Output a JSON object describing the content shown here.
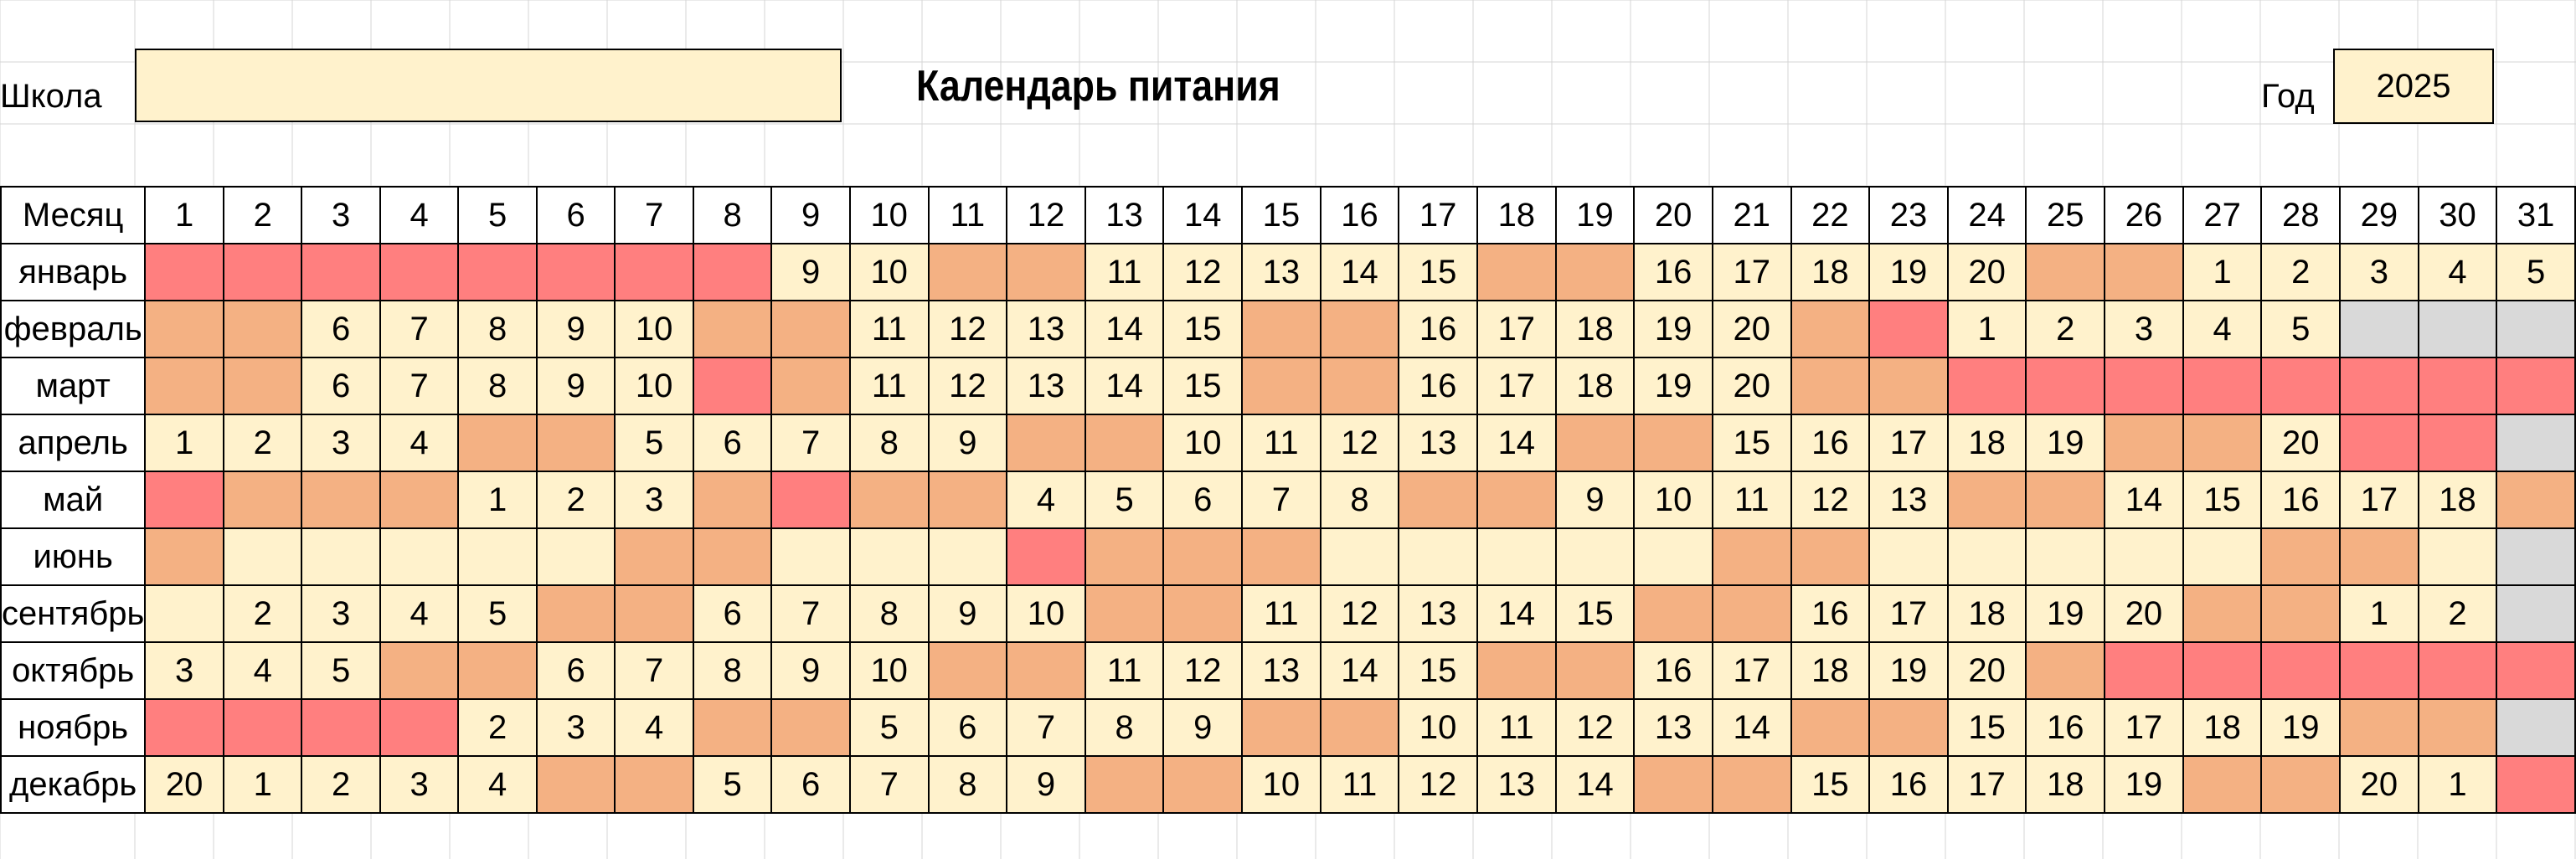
{
  "header": {
    "school_label": "Школа",
    "school_value": "",
    "title": "Календарь питания",
    "year_label": "Год",
    "year_value": "2025"
  },
  "legend_colors": {
    "study": "#FFF2CC",
    "weekend": "#F4B183",
    "holiday": "#FF7F7F",
    "no_day": "#D9D9D9"
  },
  "table": {
    "month_header": "Месяц",
    "days": [
      "1",
      "2",
      "3",
      "4",
      "5",
      "6",
      "7",
      "8",
      "9",
      "10",
      "11",
      "12",
      "13",
      "14",
      "15",
      "16",
      "17",
      "18",
      "19",
      "20",
      "21",
      "22",
      "23",
      "24",
      "25",
      "26",
      "27",
      "28",
      "29",
      "30",
      "31"
    ],
    "months": [
      {
        "name": "январь",
        "cells": [
          {
            "t": "h"
          },
          {
            "t": "h"
          },
          {
            "t": "h"
          },
          {
            "t": "h"
          },
          {
            "t": "h"
          },
          {
            "t": "h"
          },
          {
            "t": "h"
          },
          {
            "t": "h"
          },
          {
            "v": "9"
          },
          {
            "v": "10"
          },
          {
            "t": "w"
          },
          {
            "t": "w"
          },
          {
            "v": "11"
          },
          {
            "v": "12"
          },
          {
            "v": "13"
          },
          {
            "v": "14"
          },
          {
            "v": "15"
          },
          {
            "t": "w"
          },
          {
            "t": "w"
          },
          {
            "v": "16"
          },
          {
            "v": "17"
          },
          {
            "v": "18"
          },
          {
            "v": "19"
          },
          {
            "v": "20"
          },
          {
            "t": "w"
          },
          {
            "t": "w"
          },
          {
            "v": "1"
          },
          {
            "v": "2"
          },
          {
            "v": "3"
          },
          {
            "v": "4"
          },
          {
            "v": "5"
          }
        ]
      },
      {
        "name": "февраль",
        "cells": [
          {
            "t": "w"
          },
          {
            "t": "w"
          },
          {
            "v": "6"
          },
          {
            "v": "7"
          },
          {
            "v": "8"
          },
          {
            "v": "9"
          },
          {
            "v": "10"
          },
          {
            "t": "w"
          },
          {
            "t": "w"
          },
          {
            "v": "11"
          },
          {
            "v": "12"
          },
          {
            "v": "13"
          },
          {
            "v": "14"
          },
          {
            "v": "15"
          },
          {
            "t": "w"
          },
          {
            "t": "w"
          },
          {
            "v": "16"
          },
          {
            "v": "17"
          },
          {
            "v": "18"
          },
          {
            "v": "19"
          },
          {
            "v": "20"
          },
          {
            "t": "w"
          },
          {
            "t": "h"
          },
          {
            "v": "1"
          },
          {
            "v": "2"
          },
          {
            "v": "3"
          },
          {
            "v": "4"
          },
          {
            "v": "5"
          },
          {
            "t": "n"
          },
          {
            "t": "n"
          },
          {
            "t": "n"
          }
        ]
      },
      {
        "name": "март",
        "cells": [
          {
            "t": "w"
          },
          {
            "t": "w"
          },
          {
            "v": "6"
          },
          {
            "v": "7"
          },
          {
            "v": "8"
          },
          {
            "v": "9"
          },
          {
            "v": "10"
          },
          {
            "t": "h"
          },
          {
            "t": "w"
          },
          {
            "v": "11"
          },
          {
            "v": "12"
          },
          {
            "v": "13"
          },
          {
            "v": "14"
          },
          {
            "v": "15"
          },
          {
            "t": "w"
          },
          {
            "t": "w"
          },
          {
            "v": "16"
          },
          {
            "v": "17"
          },
          {
            "v": "18"
          },
          {
            "v": "19"
          },
          {
            "v": "20"
          },
          {
            "t": "w"
          },
          {
            "t": "w"
          },
          {
            "t": "h"
          },
          {
            "t": "h"
          },
          {
            "t": "h"
          },
          {
            "t": "h"
          },
          {
            "t": "h"
          },
          {
            "t": "h"
          },
          {
            "t": "h"
          },
          {
            "t": "h"
          }
        ]
      },
      {
        "name": "апрель",
        "cells": [
          {
            "v": "1"
          },
          {
            "v": "2"
          },
          {
            "v": "3"
          },
          {
            "v": "4"
          },
          {
            "t": "w"
          },
          {
            "t": "w"
          },
          {
            "v": "5"
          },
          {
            "v": "6"
          },
          {
            "v": "7"
          },
          {
            "v": "8"
          },
          {
            "v": "9"
          },
          {
            "t": "w"
          },
          {
            "t": "w"
          },
          {
            "v": "10"
          },
          {
            "v": "11"
          },
          {
            "v": "12"
          },
          {
            "v": "13"
          },
          {
            "v": "14"
          },
          {
            "t": "w"
          },
          {
            "t": "w"
          },
          {
            "v": "15"
          },
          {
            "v": "16"
          },
          {
            "v": "17"
          },
          {
            "v": "18"
          },
          {
            "v": "19"
          },
          {
            "t": "w"
          },
          {
            "t": "w"
          },
          {
            "v": "20"
          },
          {
            "t": "h"
          },
          {
            "t": "h"
          },
          {
            "t": "n"
          }
        ]
      },
      {
        "name": "май",
        "cells": [
          {
            "t": "h"
          },
          {
            "t": "w"
          },
          {
            "t": "w"
          },
          {
            "t": "w"
          },
          {
            "v": "1"
          },
          {
            "v": "2"
          },
          {
            "v": "3"
          },
          {
            "t": "w"
          },
          {
            "t": "h"
          },
          {
            "t": "w"
          },
          {
            "t": "w"
          },
          {
            "v": "4"
          },
          {
            "v": "5"
          },
          {
            "v": "6"
          },
          {
            "v": "7"
          },
          {
            "v": "8"
          },
          {
            "t": "w"
          },
          {
            "t": "w"
          },
          {
            "v": "9"
          },
          {
            "v": "10"
          },
          {
            "v": "11"
          },
          {
            "v": "12"
          },
          {
            "v": "13"
          },
          {
            "t": "w"
          },
          {
            "t": "w"
          },
          {
            "v": "14"
          },
          {
            "v": "15"
          },
          {
            "v": "16"
          },
          {
            "v": "17"
          },
          {
            "v": "18"
          },
          {
            "t": "w"
          }
        ]
      },
      {
        "name": "июнь",
        "cells": [
          {
            "t": "w"
          },
          {
            "t": "b"
          },
          {
            "t": "b"
          },
          {
            "t": "b"
          },
          {
            "t": "b"
          },
          {
            "t": "b"
          },
          {
            "t": "w"
          },
          {
            "t": "w"
          },
          {
            "t": "b"
          },
          {
            "t": "b"
          },
          {
            "t": "b"
          },
          {
            "t": "h"
          },
          {
            "t": "w"
          },
          {
            "t": "w"
          },
          {
            "t": "w"
          },
          {
            "t": "b"
          },
          {
            "t": "b"
          },
          {
            "t": "b"
          },
          {
            "t": "b"
          },
          {
            "t": "b"
          },
          {
            "t": "w"
          },
          {
            "t": "w"
          },
          {
            "t": "b"
          },
          {
            "t": "b"
          },
          {
            "t": "b"
          },
          {
            "t": "b"
          },
          {
            "t": "b"
          },
          {
            "t": "w"
          },
          {
            "t": "w"
          },
          {
            "t": "b"
          },
          {
            "t": "n"
          }
        ]
      },
      {
        "name": "сентябрь",
        "cells": [
          {
            "t": "b"
          },
          {
            "v": "2"
          },
          {
            "v": "3"
          },
          {
            "v": "4"
          },
          {
            "v": "5"
          },
          {
            "t": "w"
          },
          {
            "t": "w"
          },
          {
            "v": "6"
          },
          {
            "v": "7"
          },
          {
            "v": "8"
          },
          {
            "v": "9"
          },
          {
            "v": "10"
          },
          {
            "t": "w"
          },
          {
            "t": "w"
          },
          {
            "v": "11"
          },
          {
            "v": "12"
          },
          {
            "v": "13"
          },
          {
            "v": "14"
          },
          {
            "v": "15"
          },
          {
            "t": "w"
          },
          {
            "t": "w"
          },
          {
            "v": "16"
          },
          {
            "v": "17"
          },
          {
            "v": "18"
          },
          {
            "v": "19"
          },
          {
            "v": "20"
          },
          {
            "t": "w"
          },
          {
            "t": "w"
          },
          {
            "v": "1"
          },
          {
            "v": "2"
          },
          {
            "t": "n"
          }
        ]
      },
      {
        "name": "октябрь",
        "cells": [
          {
            "v": "3"
          },
          {
            "v": "4"
          },
          {
            "v": "5"
          },
          {
            "t": "w"
          },
          {
            "t": "w"
          },
          {
            "v": "6"
          },
          {
            "v": "7"
          },
          {
            "v": "8"
          },
          {
            "v": "9"
          },
          {
            "v": "10"
          },
          {
            "t": "w"
          },
          {
            "t": "w"
          },
          {
            "v": "11"
          },
          {
            "v": "12"
          },
          {
            "v": "13"
          },
          {
            "v": "14"
          },
          {
            "v": "15"
          },
          {
            "t": "w"
          },
          {
            "t": "w"
          },
          {
            "v": "16"
          },
          {
            "v": "17"
          },
          {
            "v": "18"
          },
          {
            "v": "19"
          },
          {
            "v": "20"
          },
          {
            "t": "w"
          },
          {
            "t": "h"
          },
          {
            "t": "h"
          },
          {
            "t": "h"
          },
          {
            "t": "h"
          },
          {
            "t": "h"
          },
          {
            "t": "h"
          }
        ]
      },
      {
        "name": "ноябрь",
        "cells": [
          {
            "t": "h"
          },
          {
            "t": "h"
          },
          {
            "t": "h"
          },
          {
            "t": "h"
          },
          {
            "v": "2"
          },
          {
            "v": "3"
          },
          {
            "v": "4"
          },
          {
            "t": "w"
          },
          {
            "t": "w"
          },
          {
            "v": "5"
          },
          {
            "v": "6"
          },
          {
            "v": "7"
          },
          {
            "v": "8"
          },
          {
            "v": "9"
          },
          {
            "t": "w"
          },
          {
            "t": "w"
          },
          {
            "v": "10"
          },
          {
            "v": "11"
          },
          {
            "v": "12"
          },
          {
            "v": "13"
          },
          {
            "v": "14"
          },
          {
            "t": "w"
          },
          {
            "t": "w"
          },
          {
            "v": "15"
          },
          {
            "v": "16"
          },
          {
            "v": "17"
          },
          {
            "v": "18"
          },
          {
            "v": "19"
          },
          {
            "t": "w"
          },
          {
            "t": "w"
          },
          {
            "t": "n"
          }
        ]
      },
      {
        "name": "декабрь",
        "cells": [
          {
            "v": "20"
          },
          {
            "v": "1"
          },
          {
            "v": "2"
          },
          {
            "v": "3"
          },
          {
            "v": "4"
          },
          {
            "t": "w"
          },
          {
            "t": "w"
          },
          {
            "v": "5"
          },
          {
            "v": "6"
          },
          {
            "v": "7"
          },
          {
            "v": "8"
          },
          {
            "v": "9"
          },
          {
            "t": "w"
          },
          {
            "t": "w"
          },
          {
            "v": "10"
          },
          {
            "v": "11"
          },
          {
            "v": "12"
          },
          {
            "v": "13"
          },
          {
            "v": "14"
          },
          {
            "t": "w"
          },
          {
            "t": "w"
          },
          {
            "v": "15"
          },
          {
            "v": "16"
          },
          {
            "v": "17"
          },
          {
            "v": "18"
          },
          {
            "v": "19"
          },
          {
            "t": "w"
          },
          {
            "t": "w"
          },
          {
            "v": "20"
          },
          {
            "v": "1"
          },
          {
            "t": "h"
          }
        ]
      }
    ]
  }
}
